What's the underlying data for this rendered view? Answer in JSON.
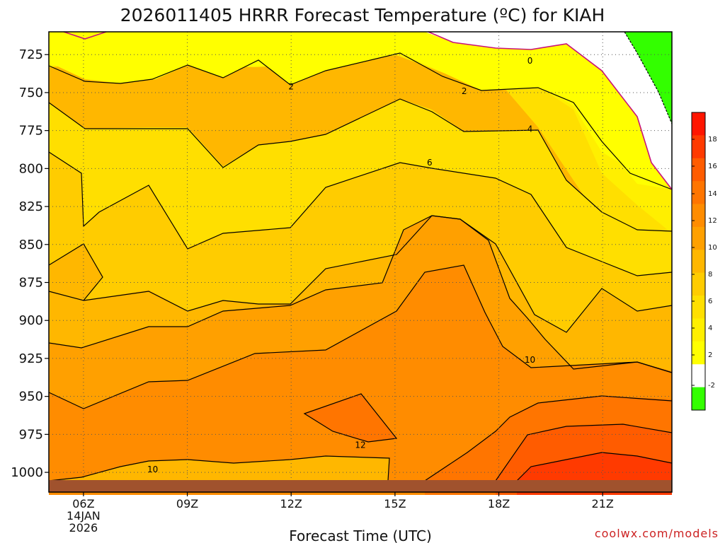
{
  "chart_data": {
    "type": "contour",
    "title": "2026011405 HRRR Forecast Temperature (ºC) for KIAH",
    "xlabel": "Forecast Time (UTC)",
    "x_ticks": [
      {
        "hour": 6,
        "label": "06Z",
        "sub": [
          "14JAN",
          "2026"
        ]
      },
      {
        "hour": 9,
        "label": "09Z",
        "sub": []
      },
      {
        "hour": 12,
        "label": "12Z",
        "sub": []
      },
      {
        "hour": 15,
        "label": "15Z",
        "sub": []
      },
      {
        "hour": 18,
        "label": "18Z",
        "sub": []
      },
      {
        "hour": 21,
        "label": "21Z",
        "sub": []
      }
    ],
    "x_range": [
      5,
      23
    ],
    "y_range_hpa": [
      1013,
      710
    ],
    "y_ticks": [
      725,
      750,
      775,
      800,
      825,
      850,
      875,
      900,
      925,
      950,
      975,
      1000
    ],
    "y_tick_labels": [
      "725",
      "750",
      "775",
      "800",
      "825",
      "850",
      "875",
      "900",
      "925",
      "950",
      "975",
      "1000"
    ],
    "grid": true,
    "surface_pressure_hpa": 1010,
    "contour_labels": [
      {
        "value": "0",
        "hour": 18.9,
        "p": 729
      },
      {
        "value": "2",
        "hour": 12.0,
        "p": 746
      },
      {
        "value": "2",
        "hour": 17.0,
        "p": 749
      },
      {
        "value": "4",
        "hour": 18.9,
        "p": 774
      },
      {
        "value": "6",
        "hour": 16.0,
        "p": 796
      },
      {
        "value": "10",
        "hour": 18.9,
        "p": 926
      },
      {
        "value": "12",
        "hour": 14.0,
        "p": 982
      },
      {
        "value": "10",
        "hour": 8.0,
        "p": 998
      }
    ],
    "colorbar": {
      "colors": [
        "#33ff00",
        "#ffffff",
        "#ffff00",
        "#ffef00",
        "#ffdf00",
        "#ffcc00",
        "#ffb700",
        "#ffa000",
        "#ff8c00",
        "#ff7500",
        "#ff5c00",
        "#ff3a00",
        "#ff1500"
      ],
      "tick_labels": [
        "-2",
        "2",
        "4",
        "6",
        "8",
        "10",
        "12",
        "14",
        "16",
        "18"
      ]
    }
  },
  "credit": "coolwx.com/models"
}
